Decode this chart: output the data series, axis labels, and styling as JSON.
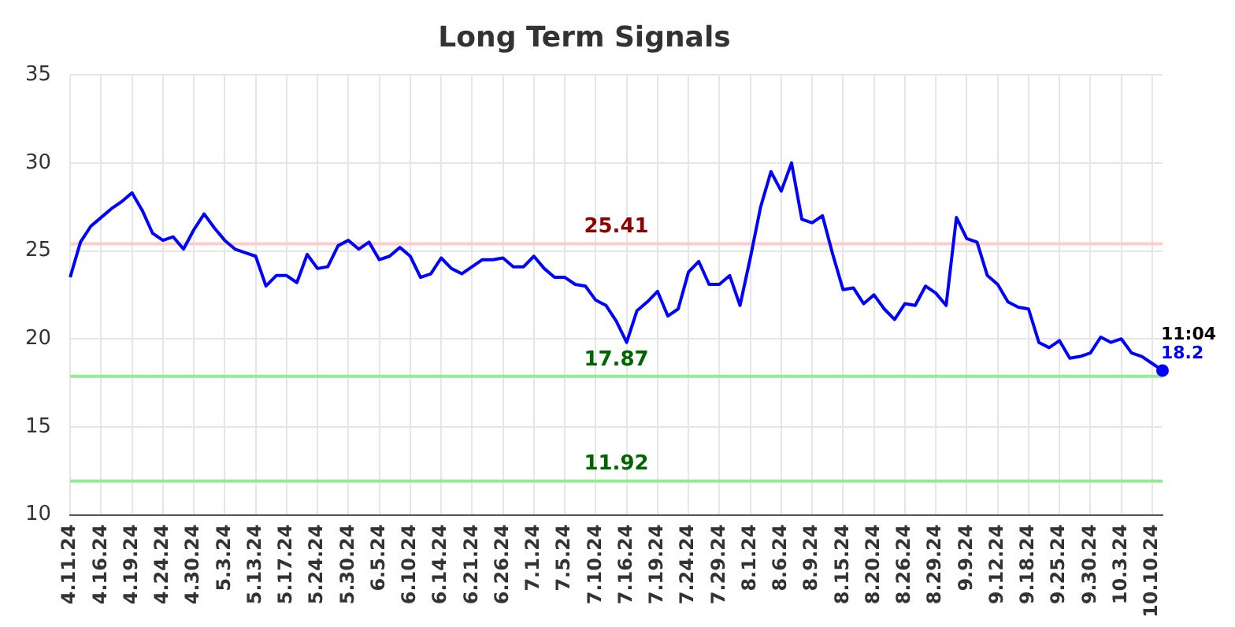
{
  "chart_data": {
    "type": "line",
    "title": "Long Term Signals",
    "categories": [
      "4.11.24",
      null,
      null,
      "4.16.24",
      null,
      null,
      "4.19.24",
      null,
      null,
      "4.24.24",
      null,
      null,
      "4.30.24",
      null,
      null,
      "5.3.24",
      null,
      null,
      "5.13.24",
      null,
      null,
      "5.17.24",
      null,
      null,
      "5.24.24",
      null,
      null,
      "5.30.24",
      null,
      null,
      "6.5.24",
      null,
      null,
      "6.10.24",
      null,
      null,
      "6.14.24",
      null,
      null,
      "6.21.24",
      null,
      null,
      "6.26.24",
      null,
      null,
      "7.1.24",
      null,
      null,
      "7.5.24",
      null,
      null,
      "7.10.24",
      null,
      null,
      "7.16.24",
      null,
      null,
      "7.19.24",
      null,
      null,
      "7.24.24",
      null,
      null,
      "7.29.24",
      null,
      null,
      "8.1.24",
      null,
      null,
      "8.6.24",
      null,
      null,
      "8.9.24",
      null,
      null,
      "8.15.24",
      null,
      null,
      "8.20.24",
      null,
      null,
      "8.26.24",
      null,
      null,
      "8.29.24",
      null,
      null,
      "9.9.24",
      null,
      null,
      "9.12.24",
      null,
      null,
      "9.18.24",
      null,
      null,
      "9.25.24",
      null,
      null,
      "9.30.24",
      null,
      null,
      "10.3.24",
      null,
      null,
      "10.10.24",
      null
    ],
    "series": [
      {
        "color": "#0000ff",
        "values": [
          23.5,
          25.5,
          26.4,
          26.9,
          27.4,
          27.8,
          28.3,
          27.3,
          26.0,
          25.6,
          25.8,
          25.1,
          26.2,
          27.1,
          26.3,
          25.6,
          25.1,
          24.9,
          24.7,
          23.0,
          23.6,
          23.6,
          23.2,
          24.8,
          24.0,
          24.1,
          25.3,
          25.6,
          25.1,
          25.5,
          24.5,
          24.7,
          25.2,
          24.7,
          23.5,
          23.7,
          24.6,
          24.0,
          23.7,
          24.1,
          24.5,
          24.5,
          24.6,
          24.1,
          24.1,
          24.7,
          24.0,
          23.5,
          23.5,
          23.1,
          23.0,
          22.2,
          21.9,
          21.0,
          19.8,
          21.6,
          22.1,
          22.7,
          21.3,
          21.7,
          23.8,
          24.4,
          23.1,
          23.1,
          23.6,
          21.9,
          24.6,
          27.5,
          29.5,
          28.4,
          30.0,
          26.8,
          26.6,
          27.0,
          24.8,
          22.8,
          22.9,
          22.0,
          22.5,
          21.7,
          21.1,
          22.0,
          21.9,
          23.0,
          22.6,
          21.9,
          26.9,
          25.7,
          25.5,
          23.6,
          23.1,
          22.1,
          21.8,
          21.7,
          19.8,
          19.5,
          19.9,
          18.9,
          19.0,
          19.2,
          20.1,
          19.8,
          20.0,
          19.2,
          19.0,
          18.6,
          18.2
        ],
        "value_labels": [
          null,
          null,
          null,
          null,
          null,
          null,
          null,
          null,
          null,
          null,
          null,
          null,
          null,
          null,
          null,
          null,
          null,
          null,
          null,
          null,
          null,
          null,
          null,
          null,
          null,
          null,
          null,
          null,
          null,
          null,
          null,
          null,
          null,
          null,
          null,
          null,
          null,
          null,
          null,
          null,
          null,
          null,
          null,
          null,
          null,
          null,
          null,
          null,
          null,
          null,
          null,
          null,
          null,
          null,
          null,
          null,
          null,
          null,
          null,
          null,
          null,
          null,
          null,
          null,
          null,
          null,
          null,
          null,
          null,
          null,
          null,
          null,
          null,
          null,
          null,
          null,
          null,
          null,
          null,
          null,
          null,
          null,
          null,
          null,
          null,
          null,
          null,
          null,
          null,
          null,
          null,
          null,
          null,
          null,
          null,
          null,
          null,
          null,
          null,
          null,
          null,
          null,
          null,
          null,
          null,
          null,
          "18.2"
        ]
      }
    ],
    "ylim": [
      10,
      35
    ],
    "yticks": [
      10,
      15,
      20,
      25,
      30,
      35
    ],
    "grid": true,
    "marker": "none",
    "line_style": "solid",
    "legend": false,
    "ref_lines": [
      {
        "axis": "y",
        "value": 25.41,
        "label": "25.41",
        "color": "#ffcccc"
      },
      {
        "axis": "y",
        "value": 17.87,
        "label": "17.87",
        "color": "#90ee90"
      },
      {
        "axis": "y",
        "value": 11.92,
        "label": "11.92",
        "color": "#90ee90"
      }
    ],
    "annotations": [
      "11:04"
    ]
  }
}
